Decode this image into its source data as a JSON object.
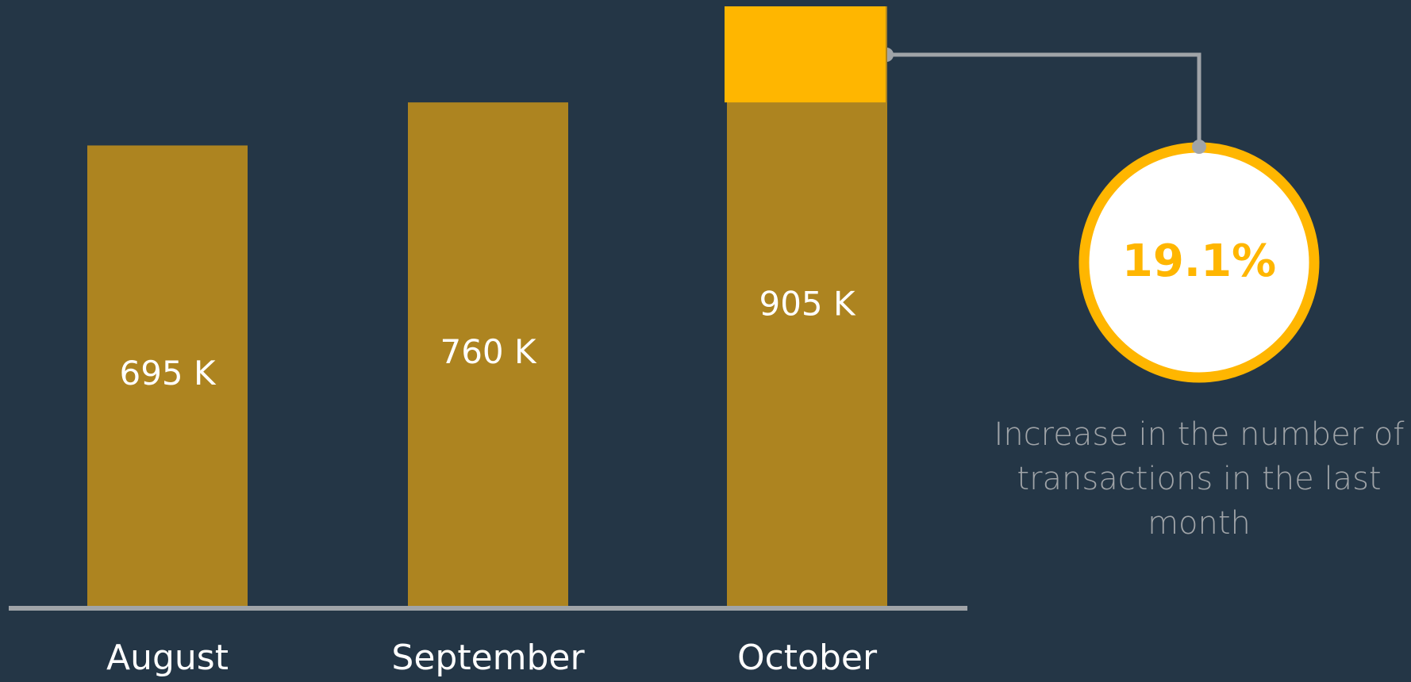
{
  "chart_data": {
    "type": "bar",
    "categories": [
      "August",
      "September",
      "October"
    ],
    "values": [
      695,
      760,
      905
    ],
    "value_labels": [
      "695 K",
      "760 K",
      "905 K"
    ],
    "color": "#ad8420",
    "highlight_color": "#ffb600",
    "ylim": [
      0,
      905
    ],
    "annotation": {
      "label": "19.1%",
      "text": "Increase in the number of transactions in the last month"
    }
  }
}
